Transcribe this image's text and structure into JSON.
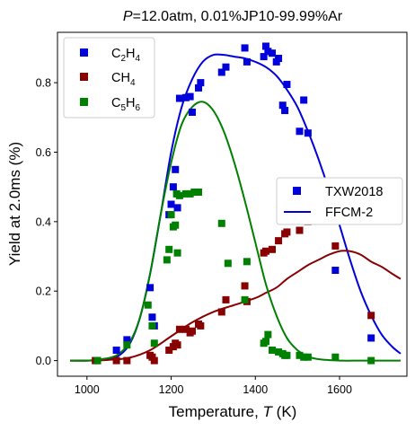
{
  "chart_data": {
    "type": "scatter",
    "title_italic": "P",
    "title_rest": "=12.0atm, 0.01%JP10-99.99%Ar",
    "xlabel_main": "Temperature, ",
    "xlabel_italic": "T",
    "xlabel_unit": " (K)",
    "ylabel": "Yield at 2.0ms (%)",
    "xlim": [
      930,
      1760
    ],
    "ylim": [
      -0.045,
      0.945
    ],
    "xticks": [
      1000,
      1200,
      1400,
      1600
    ],
    "yticks": [
      0.0,
      0.2,
      0.4,
      0.6,
      0.8
    ],
    "ytick_labels": [
      "0.0",
      "0.2",
      "0.4",
      "0.6",
      "0.8"
    ],
    "grid": false,
    "species_legend": {
      "placement": "top-left",
      "entries": [
        {
          "base": "C",
          "sub1": "2",
          "mid": "H",
          "sub2": "4",
          "color": "#0000dd"
        },
        {
          "base": "CH",
          "sub1": "4",
          "mid": "",
          "sub2": "",
          "color": "#880000"
        },
        {
          "base": "C",
          "sub1": "5",
          "mid": "H",
          "sub2": "6",
          "color": "#008000"
        }
      ]
    },
    "style_legend": {
      "placement": "center-right",
      "marker_label": "TXW2018",
      "line_label": "FFCM-2"
    },
    "series": [
      {
        "species": "C2H4",
        "color": "#0000dd",
        "points": [
          [
            1025,
            0.0
          ],
          [
            1070,
            0.03
          ],
          [
            1095,
            0.06
          ],
          [
            1150,
            0.21
          ],
          [
            1155,
            0.125
          ],
          [
            1160,
            0.1
          ],
          [
            1195,
            0.42
          ],
          [
            1200,
            0.45
          ],
          [
            1205,
            0.5
          ],
          [
            1210,
            0.55
          ],
          [
            1215,
            0.44
          ],
          [
            1220,
            0.755
          ],
          [
            1235,
            0.757
          ],
          [
            1245,
            0.76
          ],
          [
            1250,
            0.715
          ],
          [
            1265,
            0.785
          ],
          [
            1270,
            0.8
          ],
          [
            1320,
            0.83
          ],
          [
            1330,
            0.845
          ],
          [
            1375,
            0.9
          ],
          [
            1380,
            0.86
          ],
          [
            1420,
            0.875
          ],
          [
            1425,
            0.905
          ],
          [
            1430,
            0.89
          ],
          [
            1440,
            0.885
          ],
          [
            1450,
            0.86
          ],
          [
            1455,
            0.87
          ],
          [
            1465,
            0.735
          ],
          [
            1470,
            0.72
          ],
          [
            1475,
            0.795
          ],
          [
            1505,
            0.66
          ],
          [
            1515,
            0.75
          ],
          [
            1525,
            0.655
          ],
          [
            1590,
            0.26
          ],
          [
            1675,
            0.065
          ]
        ]
      },
      {
        "species": "CH4",
        "color": "#880000",
        "points": [
          [
            1020,
            0.0
          ],
          [
            1070,
            0.0
          ],
          [
            1095,
            0.0
          ],
          [
            1150,
            0.015
          ],
          [
            1155,
            0.01
          ],
          [
            1160,
            0.0
          ],
          [
            1195,
            0.03
          ],
          [
            1205,
            0.04
          ],
          [
            1210,
            0.05
          ],
          [
            1215,
            0.045
          ],
          [
            1220,
            0.09
          ],
          [
            1235,
            0.09
          ],
          [
            1245,
            0.08
          ],
          [
            1250,
            0.085
          ],
          [
            1265,
            0.105
          ],
          [
            1270,
            0.1
          ],
          [
            1320,
            0.14
          ],
          [
            1330,
            0.175
          ],
          [
            1375,
            0.215
          ],
          [
            1380,
            0.17
          ],
          [
            1420,
            0.31
          ],
          [
            1425,
            0.315
          ],
          [
            1440,
            0.32
          ],
          [
            1455,
            0.345
          ],
          [
            1465,
            0.415
          ],
          [
            1470,
            0.365
          ],
          [
            1475,
            0.37
          ],
          [
            1505,
            0.375
          ],
          [
            1515,
            0.41
          ],
          [
            1525,
            0.4
          ],
          [
            1590,
            0.33
          ],
          [
            1675,
            0.13
          ]
        ]
      },
      {
        "species": "C5H6",
        "color": "#008000",
        "points": [
          [
            1025,
            0.0
          ],
          [
            1095,
            0.045
          ],
          [
            1145,
            0.16
          ],
          [
            1155,
            0.1
          ],
          [
            1160,
            0.05
          ],
          [
            1190,
            0.29
          ],
          [
            1195,
            0.32
          ],
          [
            1200,
            0.42
          ],
          [
            1205,
            0.385
          ],
          [
            1210,
            0.39
          ],
          [
            1213,
            0.48
          ],
          [
            1215,
            0.31
          ],
          [
            1220,
            0.475
          ],
          [
            1235,
            0.48
          ],
          [
            1245,
            0.48
          ],
          [
            1255,
            0.485
          ],
          [
            1265,
            0.485
          ],
          [
            1320,
            0.395
          ],
          [
            1335,
            0.28
          ],
          [
            1375,
            0.175
          ],
          [
            1380,
            0.285
          ],
          [
            1420,
            0.05
          ],
          [
            1425,
            0.055
          ],
          [
            1430,
            0.075
          ],
          [
            1440,
            0.03
          ],
          [
            1455,
            0.025
          ],
          [
            1465,
            0.02
          ],
          [
            1470,
            0.015
          ],
          [
            1475,
            0.015
          ],
          [
            1505,
            0.015
          ],
          [
            1515,
            0.01
          ],
          [
            1525,
            0.01
          ],
          [
            1590,
            0.01
          ],
          [
            1675,
            0.0
          ]
        ]
      }
    ],
    "model_curves": [
      {
        "species": "C2H4",
        "color": "#0000dd",
        "points": [
          [
            960,
            0.0
          ],
          [
            1000,
            0.0
          ],
          [
            1040,
            0.002
          ],
          [
            1070,
            0.01
          ],
          [
            1100,
            0.045
          ],
          [
            1125,
            0.12
          ],
          [
            1150,
            0.25
          ],
          [
            1175,
            0.42
          ],
          [
            1200,
            0.6
          ],
          [
            1225,
            0.73
          ],
          [
            1250,
            0.81
          ],
          [
            1275,
            0.86
          ],
          [
            1300,
            0.88
          ],
          [
            1325,
            0.88
          ],
          [
            1350,
            0.875
          ],
          [
            1375,
            0.87
          ],
          [
            1400,
            0.86
          ],
          [
            1425,
            0.845
          ],
          [
            1450,
            0.82
          ],
          [
            1475,
            0.78
          ],
          [
            1500,
            0.73
          ],
          [
            1525,
            0.66
          ],
          [
            1550,
            0.58
          ],
          [
            1575,
            0.49
          ],
          [
            1600,
            0.39
          ],
          [
            1625,
            0.29
          ],
          [
            1650,
            0.2
          ],
          [
            1675,
            0.13
          ],
          [
            1700,
            0.075
          ],
          [
            1725,
            0.04
          ],
          [
            1745,
            0.02
          ]
        ]
      },
      {
        "species": "CH4",
        "color": "#880000",
        "points": [
          [
            960,
            0.0
          ],
          [
            1000,
            0.0
          ],
          [
            1050,
            0.002
          ],
          [
            1100,
            0.008
          ],
          [
            1150,
            0.03
          ],
          [
            1200,
            0.07
          ],
          [
            1250,
            0.11
          ],
          [
            1300,
            0.14
          ],
          [
            1350,
            0.16
          ],
          [
            1400,
            0.18
          ],
          [
            1425,
            0.195
          ],
          [
            1450,
            0.21
          ],
          [
            1475,
            0.235
          ],
          [
            1500,
            0.255
          ],
          [
            1525,
            0.275
          ],
          [
            1550,
            0.29
          ],
          [
            1575,
            0.305
          ],
          [
            1600,
            0.315
          ],
          [
            1625,
            0.315
          ],
          [
            1650,
            0.305
          ],
          [
            1675,
            0.285
          ],
          [
            1700,
            0.27
          ],
          [
            1725,
            0.25
          ],
          [
            1745,
            0.235
          ]
        ]
      },
      {
        "species": "C5H6",
        "color": "#008000",
        "points": [
          [
            960,
            0.0
          ],
          [
            1000,
            0.0
          ],
          [
            1040,
            0.005
          ],
          [
            1070,
            0.015
          ],
          [
            1100,
            0.05
          ],
          [
            1125,
            0.12
          ],
          [
            1150,
            0.25
          ],
          [
            1175,
            0.42
          ],
          [
            1200,
            0.57
          ],
          [
            1225,
            0.68
          ],
          [
            1250,
            0.73
          ],
          [
            1275,
            0.745
          ],
          [
            1300,
            0.72
          ],
          [
            1325,
            0.66
          ],
          [
            1350,
            0.57
          ],
          [
            1375,
            0.46
          ],
          [
            1400,
            0.34
          ],
          [
            1425,
            0.22
          ],
          [
            1450,
            0.13
          ],
          [
            1475,
            0.065
          ],
          [
            1500,
            0.03
          ],
          [
            1525,
            0.012
          ],
          [
            1550,
            0.004
          ],
          [
            1600,
            0.0
          ],
          [
            1650,
            0.0
          ],
          [
            1700,
            0.0
          ],
          [
            1745,
            0.0
          ]
        ]
      }
    ]
  }
}
